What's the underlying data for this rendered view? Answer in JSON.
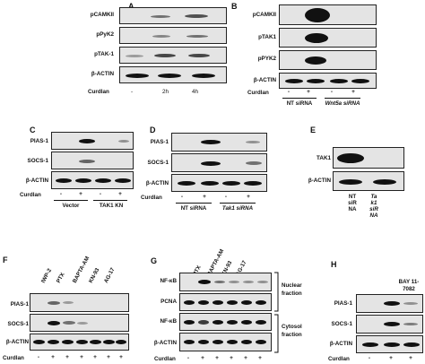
{
  "panels": {
    "A": {
      "letter": "A",
      "rows": [
        "pCAMKII",
        "pPyK2",
        "pTAK-1",
        "β-ACTIN"
      ],
      "curdlan_label": "Curdlan",
      "lanes": [
        "-",
        "2h",
        "4h"
      ]
    },
    "B": {
      "letter": "B",
      "rows": [
        "pCAMKII",
        "pTAK1",
        "pPYK2",
        "β-ACTIN"
      ],
      "curdlan_label": "Curdlan",
      "signs": [
        "-",
        "+",
        "-",
        "+"
      ],
      "groups": [
        "NT siRNA",
        "Wnt5a siRNA"
      ]
    },
    "C": {
      "letter": "C",
      "rows": [
        "PIAS-1",
        "SOCS-1",
        "β-ACTIN"
      ],
      "curdlan_label": "Curdlan",
      "signs": [
        "-",
        "+",
        "-",
        "+"
      ],
      "groups": [
        "Vector",
        "TAK1 KN"
      ]
    },
    "D": {
      "letter": "D",
      "rows": [
        "PIAS-1",
        "SOCS-1",
        "β-ACTIN"
      ],
      "curdlan_label": "Curdlan",
      "signs": [
        "-",
        "+",
        "-",
        "+"
      ],
      "groups": [
        "NT siRNA",
        "Tak1 siRNA"
      ]
    },
    "E": {
      "letter": "E",
      "rows": [
        "TAK1",
        "β-ACTIN"
      ],
      "columns": [
        "NT siRNA",
        "Tak1 siRNA"
      ]
    },
    "F": {
      "letter": "F",
      "rows": [
        "PIAS-1",
        "SOCS-1",
        "β-ACTIN"
      ],
      "treatments": [
        "IWP-2",
        "PTX",
        "BAPTA-AM",
        "KN-93",
        "AG-17"
      ],
      "curdlan_label": "Curdlan",
      "signs": [
        "-",
        "+",
        "+",
        "+",
        "+",
        "+",
        "+"
      ]
    },
    "G": {
      "letter": "G",
      "rows": [
        "NF-κB",
        "PCNA",
        "NF-κB",
        "β-ACTIN"
      ],
      "treatments": [
        "PTX",
        "BAPTA-AM",
        "KN-93",
        "AG-17"
      ],
      "fractions": [
        "Nuclear fraction",
        "Cytosol fraction"
      ],
      "curdlan_label": "Curdlan",
      "signs": [
        "-",
        "+",
        "+",
        "+",
        "+",
        "+"
      ]
    },
    "H": {
      "letter": "H",
      "rows": [
        "PIAS-1",
        "SOCS-1",
        "β-ACTIN"
      ],
      "treatments": [
        "BAY 11-7082"
      ],
      "curdlan_label": "Curdlan",
      "signs": [
        "-",
        "+",
        "+"
      ]
    }
  }
}
